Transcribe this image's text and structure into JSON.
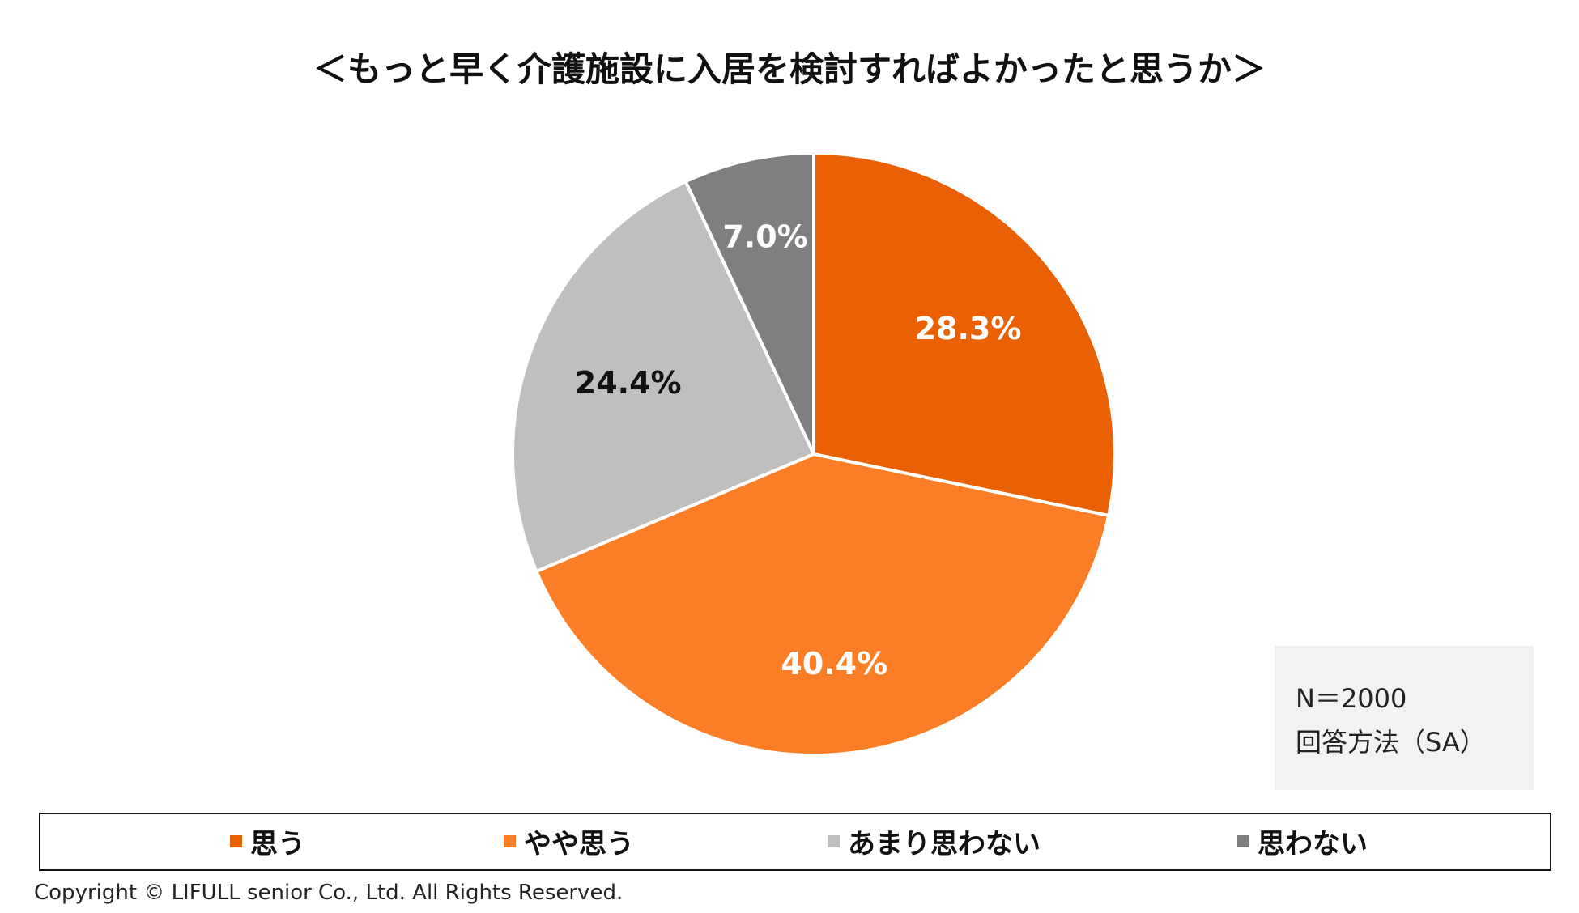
{
  "chart_data": {
    "type": "pie",
    "title": "＜もっと早く介護施設に入居を検討すればよかったと思うか＞",
    "slices": [
      {
        "label": "思う",
        "value": 28.3,
        "display": "28.3%",
        "color": "#ea6105",
        "label_color": "#ffffff"
      },
      {
        "label": "やや思う",
        "value": 40.4,
        "display": "40.4%",
        "color": "#fb7e26",
        "label_color": "#ffffff"
      },
      {
        "label": "あまり思わない",
        "value": 24.4,
        "display": "24.4%",
        "color": "#bfbfbf",
        "label_color": "#111111"
      },
      {
        "label": "思わない",
        "value": 7.0,
        "display": "7.0%",
        "color": "#7f7f7f",
        "label_color": "#ffffff"
      }
    ],
    "legend_position": "bottom"
  },
  "note": {
    "n": "N＝2000",
    "method": "回答方法（SA）"
  },
  "legend": {
    "items": [
      {
        "label": "思う",
        "color": "#ea6105"
      },
      {
        "label": "やや思う",
        "color": "#fb7e26"
      },
      {
        "label": "あまり思わない",
        "color": "#bfbfbf"
      },
      {
        "label": "思わない",
        "color": "#7f7f7f"
      }
    ]
  },
  "footer": {
    "copyright": "Copyright © LIFULL senior Co., Ltd. All Rights Reserved."
  }
}
